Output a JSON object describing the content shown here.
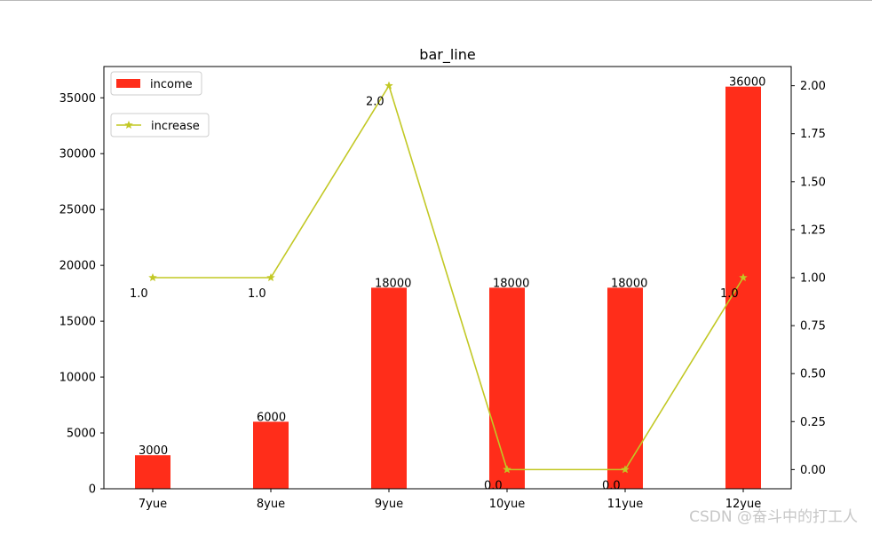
{
  "chart_data": {
    "type": "bar",
    "title": "bar_line",
    "categories": [
      "7yue",
      "8yue",
      "9yue",
      "10yue",
      "11yue",
      "12yue"
    ],
    "series": [
      {
        "name": "income",
        "type": "bar",
        "axis": "left",
        "color": "#ff2d1a",
        "values": [
          3000,
          6000,
          18000,
          18000,
          18000,
          36000
        ],
        "labels": [
          "3000",
          "6000",
          "18000",
          "18000",
          "18000",
          "36000"
        ]
      },
      {
        "name": "increase",
        "type": "line",
        "axis": "right",
        "marker": "star",
        "color": "#c2c824",
        "values": [
          1.0,
          1.0,
          2.0,
          0.0,
          0.0,
          1.0
        ],
        "labels": [
          "1.0",
          "1.0",
          "2.0",
          "0.0",
          "0.0",
          "1.0"
        ]
      }
    ],
    "y_left": {
      "ylim": [
        0,
        37800
      ],
      "ticks": [
        0,
        5000,
        10000,
        15000,
        20000,
        25000,
        30000,
        35000
      ],
      "tick_labels": [
        "0",
        "5000",
        "10000",
        "15000",
        "20000",
        "25000",
        "30000",
        "35000"
      ]
    },
    "y_right": {
      "ylim": [
        -0.1,
        2.1
      ],
      "ticks": [
        0,
        0.25,
        0.5,
        0.75,
        1.0,
        1.25,
        1.5,
        1.75,
        2.0
      ],
      "tick_labels": [
        "0.00",
        "0.25",
        "0.50",
        "0.75",
        "1.00",
        "1.25",
        "1.50",
        "1.75",
        "2.00"
      ]
    },
    "legend": [
      {
        "label": "income",
        "placement": "top-left"
      },
      {
        "label": "increase",
        "placement": "upper-left"
      }
    ],
    "grid": false
  },
  "watermark": "CSDN @奋斗中的打工人"
}
